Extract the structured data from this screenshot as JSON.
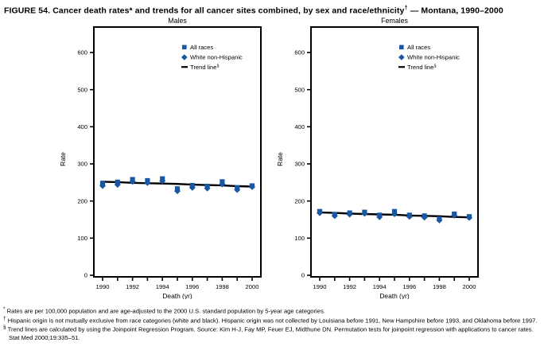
{
  "figure": {
    "title_prefix": "FIGURE 54. Cancer death rates* and trends for all cancer sites combined, by sex and race/ethnicity",
    "title_sup": "†",
    "title_suffix": " — Montana, 1990–2000"
  },
  "colors": {
    "marker_blue": "#1857a4",
    "trend_black": "#000000",
    "axis_black": "#000000"
  },
  "legend": {
    "all_races": "All races",
    "white_non_hispanic": "White non-Hispanic",
    "trend_line": "Trend line",
    "trend_sup": "§"
  },
  "chart_data": [
    {
      "type": "scatter",
      "title": "Males",
      "xlabel": "Death (yr)",
      "ylabel": "Rate",
      "ylim": [
        0,
        650
      ],
      "yticks": [
        0,
        100,
        200,
        300,
        400,
        500,
        600
      ],
      "x": [
        1990,
        1991,
        1992,
        1993,
        1994,
        1995,
        1996,
        1997,
        1998,
        1999,
        2000
      ],
      "xtick_labels": [
        "1990",
        "1992",
        "1994",
        "1996",
        "1998",
        "2000"
      ],
      "legend_position": "top-right-inside",
      "grid": false,
      "series": [
        {
          "name": "All races",
          "marker": "square",
          "values": [
            248,
            251,
            258,
            255,
            260,
            233,
            242,
            240,
            252,
            236,
            241
          ]
        },
        {
          "name": "White non-Hispanic",
          "marker": "diamond",
          "values": [
            241,
            244,
            252,
            249,
            254,
            227,
            236,
            234,
            245,
            230,
            238
          ]
        },
        {
          "name": "Trend line",
          "marker": "line",
          "values": [
            252,
            251,
            249,
            248,
            247,
            246,
            244,
            243,
            242,
            240,
            239
          ]
        }
      ]
    },
    {
      "type": "scatter",
      "title": "Females",
      "xlabel": "Death (yr)",
      "ylabel": "Rate",
      "ylim": [
        0,
        650
      ],
      "yticks": [
        0,
        100,
        200,
        300,
        400,
        500,
        600
      ],
      "x": [
        1990,
        1991,
        1992,
        1993,
        1994,
        1995,
        1996,
        1997,
        1998,
        1999,
        2000
      ],
      "xtick_labels": [
        "1990",
        "1992",
        "1994",
        "1996",
        "1998",
        "2000"
      ],
      "legend_position": "top-right-inside",
      "grid": false,
      "series": [
        {
          "name": "All races",
          "marker": "square",
          "values": [
            172,
            164,
            168,
            170,
            162,
            172,
            162,
            160,
            152,
            165,
            158
          ]
        },
        {
          "name": "White non-Hispanic",
          "marker": "diamond",
          "values": [
            168,
            160,
            164,
            166,
            157,
            165,
            158,
            156,
            148,
            161,
            155
          ]
        },
        {
          "name": "Trend line",
          "marker": "line",
          "values": [
            169,
            168,
            166,
            165,
            164,
            163,
            161,
            160,
            159,
            157,
            156
          ]
        }
      ]
    }
  ],
  "footnotes": [
    {
      "marker": "*",
      "text": "Rates are per 100,000 population and are age-adjusted to the 2000 U.S. standard population by 5-year age categories."
    },
    {
      "marker": "†",
      "text": "Hispanic origin is not mutually exclusive from race categories (white and black). Hispanic origin was not collected by Louisiana before 1991, New Hampshire before 1993, and Oklahoma before 1997."
    },
    {
      "marker": "§",
      "text": "Trend lines are calculated by using the Joinpoint Regression Program. Source: Kim H-J, Fay MP, Feuer EJ, Midthune DN. Permutation tests for joinpoint regression with applications to cancer rates. Stat Med 2000;19:335–51."
    }
  ]
}
